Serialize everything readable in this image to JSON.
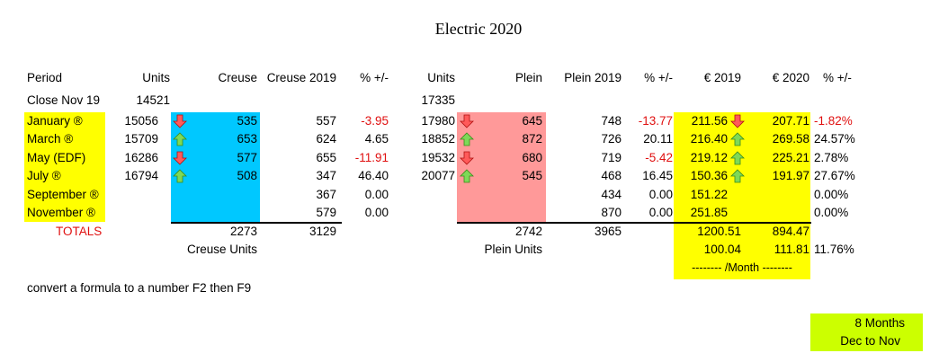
{
  "title": "Electric 2020",
  "colors": {
    "creuse": "#00c8ff",
    "plein": "#ff9999",
    "yellow": "#ffff00",
    "months_box": "#ccff00",
    "negative": "#e01010"
  },
  "headers": {
    "period": "Period",
    "units": "Units",
    "creuse": "Creuse",
    "creuse_2019": "Creuse 2019",
    "pct_creuse": "% +/-",
    "units_plein": "Units",
    "plein": "Plein",
    "plein_2019": "Plein 2019",
    "pct_plein": "% +/-",
    "eur_2019": "€ 2019",
    "eur_2020": "€ 2020",
    "pct_eur": "% +/-"
  },
  "close": {
    "label": "Close Nov 19",
    "units_creuse": "14521",
    "units_plein": "17335"
  },
  "rows": [
    {
      "period": "January  ®",
      "units": "15056",
      "creuse_arrow": "down",
      "creuse": "535",
      "creuse_2019": "557",
      "pct_c": "-3.95",
      "units_p": "17980",
      "plein_arrow": "down",
      "plein": "645",
      "plein_2019": "748",
      "pct_p": "-13.77",
      "eur_2019": "211.56",
      "eur_arrow": "down",
      "eur_2020": "207.71",
      "pct_e": "-1.82%"
    },
    {
      "period": "March  ®",
      "units": "15709",
      "creuse_arrow": "up",
      "creuse": "653",
      "creuse_2019": "624",
      "pct_c": "4.65",
      "units_p": "18852",
      "plein_arrow": "up",
      "plein": "872",
      "plein_2019": "726",
      "pct_p": "20.11",
      "eur_2019": "216.40",
      "eur_arrow": "up",
      "eur_2020": "269.58",
      "pct_e": "24.57%"
    },
    {
      "period": "May (EDF)",
      "units": "16286",
      "creuse_arrow": "down",
      "creuse": "577",
      "creuse_2019": "655",
      "pct_c": "-11.91",
      "units_p": "19532",
      "plein_arrow": "down",
      "plein": "680",
      "plein_2019": "719",
      "pct_p": "-5.42",
      "eur_2019": "219.12",
      "eur_arrow": "up",
      "eur_2020": "225.21",
      "pct_e": "2.78%"
    },
    {
      "period": "July ®",
      "units": "16794",
      "creuse_arrow": "up",
      "creuse": "508",
      "creuse_2019": "347",
      "pct_c": "46.40",
      "units_p": "20077",
      "plein_arrow": "up",
      "plein": "545",
      "plein_2019": "468",
      "pct_p": "16.45",
      "eur_2019": "150.36",
      "eur_arrow": "up",
      "eur_2020": "191.97",
      "pct_e": "27.67%"
    },
    {
      "period": "September ®",
      "units": "",
      "creuse_arrow": "",
      "creuse": "",
      "creuse_2019": "367",
      "pct_c": "0.00",
      "units_p": "",
      "plein_arrow": "",
      "plein": "",
      "plein_2019": "434",
      "pct_p": "0.00",
      "eur_2019": "151.22",
      "eur_arrow": "",
      "eur_2020": "",
      "pct_e": "0.00%"
    },
    {
      "period": "November ®",
      "units": "",
      "creuse_arrow": "",
      "creuse": "",
      "creuse_2019": "579",
      "pct_c": "0.00",
      "units_p": "",
      "plein_arrow": "",
      "plein": "",
      "plein_2019": "870",
      "pct_p": "0.00",
      "eur_2019": "251.85",
      "eur_arrow": "",
      "eur_2020": "",
      "pct_e": "0.00%"
    }
  ],
  "totals": {
    "label": "TOTALS",
    "creuse": "2273",
    "creuse_2019": "3129",
    "plein": "2742",
    "plein_2019": "3965",
    "eur_2019": "1200.51",
    "eur_2020": "894.47"
  },
  "units_labels": {
    "creuse": "Creuse Units",
    "plein": "Plein Units"
  },
  "monthly": {
    "eur_2019": "100.04",
    "eur_2020": "111.81",
    "pct": "11.76%",
    "label": "-------- /Month --------"
  },
  "note": "convert a formula to a number F2 then F9",
  "months_box": {
    "line1": "8  Months",
    "line2": "Dec to Nov"
  }
}
